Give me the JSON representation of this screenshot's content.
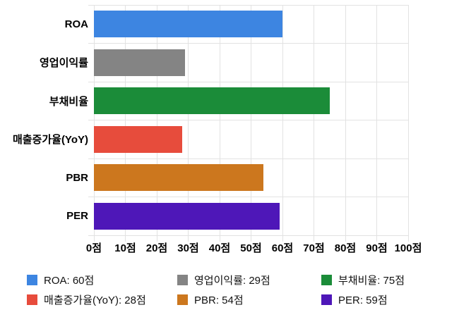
{
  "chart_data": {
    "type": "bar",
    "orientation": "horizontal",
    "title": "",
    "xlabel": "",
    "ylabel": "",
    "unit": "점",
    "categories": [
      "ROA",
      "영업이익률",
      "부채비율",
      "매출증가율(YoY)",
      "PBR",
      "PER"
    ],
    "values": [
      60,
      29,
      75,
      28,
      54,
      59
    ],
    "colors": [
      "#3d85e1",
      "#848484",
      "#1b8c39",
      "#e74c3c",
      "#cc771e",
      "#4e17b8"
    ],
    "xlim": [
      0,
      100
    ],
    "x_ticks": [
      0,
      10,
      20,
      30,
      40,
      50,
      60,
      70,
      80,
      90,
      100
    ],
    "x_tick_labels": [
      "0점",
      "10점",
      "20점",
      "30점",
      "40점",
      "50점",
      "60점",
      "70점",
      "80점",
      "90점",
      "100점"
    ],
    "grid": true,
    "gridline_color": "#e2e2e2",
    "legend": {
      "position": "bottom",
      "rows": 2,
      "columns": 3,
      "entries": [
        {
          "label": "ROA: 60점",
          "color": "#3d85e1"
        },
        {
          "label": "영업이익률: 29점",
          "color": "#848484"
        },
        {
          "label": "부채비율: 75점",
          "color": "#1b8c39"
        },
        {
          "label": "매출증가율(YoY): 28점",
          "color": "#e74c3c"
        },
        {
          "label": "PBR: 54점",
          "color": "#cc771e"
        },
        {
          "label": "PER: 59점",
          "color": "#4e17b8"
        }
      ]
    }
  }
}
